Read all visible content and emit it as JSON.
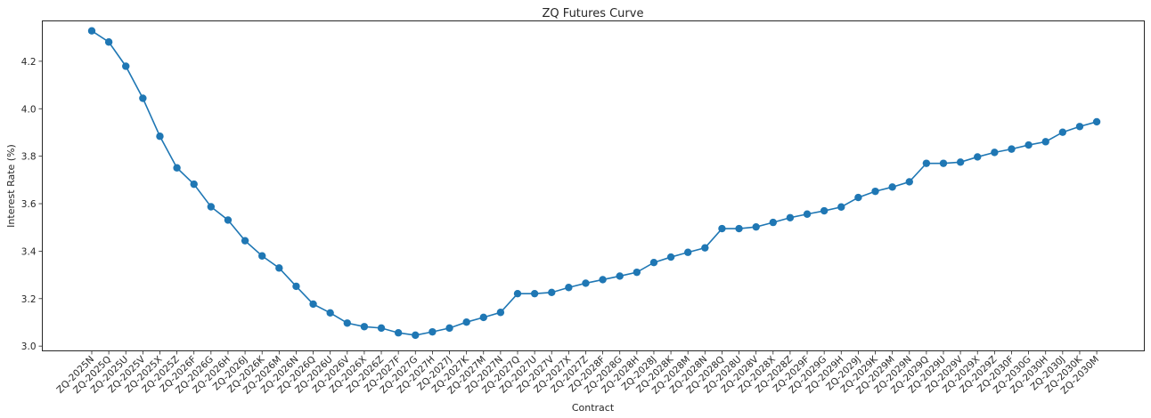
{
  "chart_data": {
    "type": "line",
    "title": "ZQ Futures Curve",
    "xlabel": "Contract",
    "ylabel": "Interest Rate (%)",
    "ylim": [
      2.98,
      4.37
    ],
    "yticks": [
      "3.0",
      "3.2",
      "3.4",
      "3.6",
      "3.8",
      "4.0",
      "4.2"
    ],
    "grid": false,
    "marker": "circle",
    "color": "#1f77b4",
    "categories": [
      "ZQ-2025N",
      "ZQ-2025Q",
      "ZQ-2025U",
      "ZQ-2025V",
      "ZQ-2025X",
      "ZQ-2025Z",
      "ZQ-2026F",
      "ZQ-2026G",
      "ZQ-2026H",
      "ZQ-2026J",
      "ZQ-2026K",
      "ZQ-2026M",
      "ZQ-2026N",
      "ZQ-2026Q",
      "ZQ-2026U",
      "ZQ-2026V",
      "ZQ-2026X",
      "ZQ-2026Z",
      "ZQ-2027F",
      "ZQ-2027G",
      "ZQ-2027H",
      "ZQ-2027J",
      "ZQ-2027K",
      "ZQ-2027M",
      "ZQ-2027N",
      "ZQ-2027Q",
      "ZQ-2027U",
      "ZQ-2027V",
      "ZQ-2027X",
      "ZQ-2027Z",
      "ZQ-2028F",
      "ZQ-2028G",
      "ZQ-2028H",
      "ZQ-2028J",
      "ZQ-2028K",
      "ZQ-2028M",
      "ZQ-2028N",
      "ZQ-2028Q",
      "ZQ-2028U",
      "ZQ-2028V",
      "ZQ-2028X",
      "ZQ-2028Z",
      "ZQ-2029F",
      "ZQ-2029G",
      "ZQ-2029H",
      "ZQ-2029J",
      "ZQ-2029K",
      "ZQ-2029M",
      "ZQ-2029N",
      "ZQ-2029Q",
      "ZQ-2029U",
      "ZQ-2029V",
      "ZQ-2029X",
      "ZQ-2029Z",
      "ZQ-2030F",
      "ZQ-2030G",
      "ZQ-2030H",
      "ZQ-2030J",
      "ZQ-2030K",
      "ZQ-2030M"
    ],
    "values": [
      4.328,
      4.281,
      4.179,
      4.044,
      3.884,
      3.751,
      3.682,
      3.587,
      3.531,
      3.444,
      3.38,
      3.329,
      3.252,
      3.177,
      3.14,
      3.097,
      3.082,
      3.076,
      3.056,
      3.046,
      3.06,
      3.076,
      3.101,
      3.121,
      3.142,
      3.221,
      3.221,
      3.226,
      3.247,
      3.265,
      3.28,
      3.295,
      3.311,
      3.352,
      3.375,
      3.395,
      3.414,
      3.495,
      3.495,
      3.502,
      3.521,
      3.541,
      3.556,
      3.57,
      3.586,
      3.626,
      3.652,
      3.67,
      3.692,
      3.77,
      3.77,
      3.775,
      3.797,
      3.816,
      3.83,
      3.847,
      3.861,
      3.901,
      3.925,
      3.945
    ]
  }
}
